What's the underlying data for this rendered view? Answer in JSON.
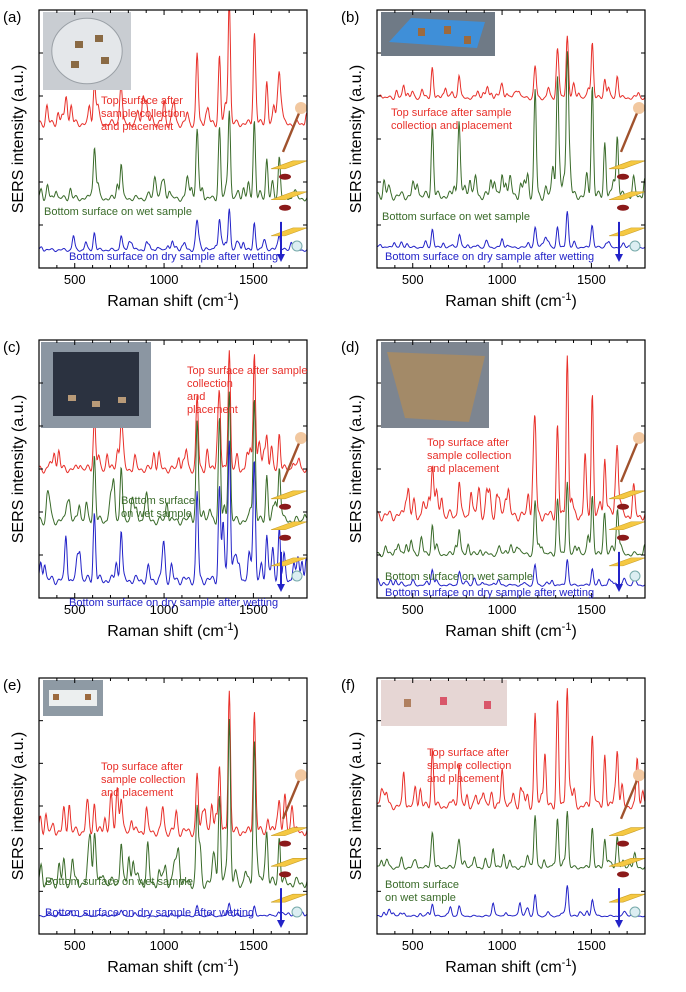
{
  "figure": {
    "y_axis_label": "SERS intensity (a.u.)",
    "x_axis_label_main": "Raman shift (cm",
    "x_axis_label_sup": "-1",
    "x_axis_label_end": ")"
  },
  "colors": {
    "top": "#e8302a",
    "wet": "#3a6b2a",
    "dry": "#2323c8"
  },
  "chart_data": [
    {
      "panel": "(a)",
      "type": "line",
      "xlabel": "Raman shift (cm-1)",
      "ylabel": "SERS intensity (a.u.)",
      "xlim": [
        300,
        1800
      ],
      "xticks": [
        500,
        1000,
        1500
      ],
      "annotations": {
        "top": [
          "Top surface after",
          "sample collection",
          "and placement"
        ],
        "wet": [
          "Bottom surface on wet sample"
        ],
        "dry": [
          "Bottom surface on dry sample after wetting"
        ]
      },
      "series": [
        {
          "name": "Top surface after sample collection and placement",
          "offset": 0.56,
          "amplitude": 0.48,
          "peaks": [
            [
              1185,
              0.62
            ],
            [
              1310,
              0.6
            ],
            [
              1365,
              1.0
            ],
            [
              1505,
              0.72
            ],
            [
              1575,
              0.38
            ],
            [
              1645,
              0.42
            ],
            [
              610,
              0.35
            ],
            [
              760,
              0.32
            ],
            [
              1000,
              0.2
            ],
            [
              450,
              0.14
            ]
          ]
        },
        {
          "name": "Bottom surface on wet sample",
          "offset": 0.27,
          "amplitude": 0.34,
          "peaks": [
            [
              1185,
              0.75
            ],
            [
              1310,
              0.8
            ],
            [
              1365,
              1.0
            ],
            [
              1505,
              0.88
            ],
            [
              1575,
              0.45
            ],
            [
              1645,
              0.48
            ],
            [
              610,
              0.42
            ],
            [
              760,
              0.4
            ],
            [
              1000,
              0.18
            ]
          ]
        },
        {
          "name": "Bottom surface on dry sample after wetting",
          "offset": 0.07,
          "amplitude": 0.16,
          "peaks": [
            [
              1185,
              0.55
            ],
            [
              1310,
              0.6
            ],
            [
              1365,
              0.85
            ],
            [
              1505,
              0.55
            ],
            [
              1645,
              0.3
            ],
            [
              610,
              0.35
            ],
            [
              760,
              0.3
            ]
          ]
        }
      ]
    },
    {
      "panel": "(b)",
      "type": "line",
      "xlabel": "Raman shift (cm-1)",
      "ylabel": "SERS intensity (a.u.)",
      "xlim": [
        300,
        1800
      ],
      "xticks": [
        500,
        1000,
        1500
      ],
      "annotations": {
        "top": [
          "Top surface after sample",
          "collection and placement"
        ],
        "wet": [
          "Bottom surface on wet sample"
        ],
        "dry": [
          "Bottom surface on dry sample after wetting"
        ]
      },
      "series": [
        {
          "name": "Top surface after sample collection and placement",
          "offset": 0.66,
          "amplitude": 0.24,
          "peaks": [
            [
              1185,
              0.5
            ],
            [
              1310,
              0.6
            ],
            [
              1365,
              1.0
            ],
            [
              1505,
              0.88
            ],
            [
              1575,
              0.3
            ],
            [
              1645,
              0.35
            ],
            [
              610,
              0.3
            ],
            [
              760,
              0.25
            ],
            [
              450,
              0.2
            ],
            [
              1000,
              0.18
            ]
          ]
        },
        {
          "name": "Bottom surface on wet sample",
          "offset": 0.28,
          "amplitude": 0.56,
          "peaks": [
            [
              1185,
              0.78
            ],
            [
              1310,
              0.86
            ],
            [
              1365,
              1.0
            ],
            [
              1505,
              0.82
            ],
            [
              1575,
              0.4
            ],
            [
              1645,
              0.45
            ],
            [
              610,
              0.52
            ],
            [
              760,
              0.48
            ],
            [
              1000,
              0.15
            ]
          ]
        },
        {
          "name": "Bottom surface on dry sample after wetting",
          "offset": 0.08,
          "amplitude": 0.14,
          "peaks": [
            [
              1185,
              0.55
            ],
            [
              1310,
              0.6
            ],
            [
              1365,
              0.9
            ],
            [
              1505,
              0.55
            ],
            [
              610,
              0.38
            ],
            [
              760,
              0.3
            ],
            [
              1000,
              0.25
            ]
          ]
        }
      ]
    },
    {
      "panel": "(c)",
      "type": "line",
      "xlabel": "Raman shift (cm-1)",
      "ylabel": "SERS intensity (a.u.)",
      "xlim": [
        300,
        1800
      ],
      "xticks": [
        500,
        1000,
        1500
      ],
      "annotations": {
        "top": [
          "Top surface after sample",
          "collection",
          "and",
          "placement"
        ],
        "wet": [
          "Bottom surface",
          "on wet sample"
        ],
        "dry": [
          "Bottom surface on dry sample after wetting"
        ]
      },
      "series": [
        {
          "name": "Top surface after sample collection and placement",
          "offset": 0.5,
          "amplitude": 0.46,
          "peaks": [
            [
              1185,
              0.6
            ],
            [
              1310,
              0.58
            ],
            [
              1365,
              1.0
            ],
            [
              1505,
              0.9
            ],
            [
              1575,
              0.28
            ],
            [
              1645,
              0.3
            ],
            [
              610,
              0.35
            ],
            [
              760,
              0.28
            ]
          ]
        },
        {
          "name": "Bottom surface on wet sample",
          "offset": 0.3,
          "amplitude": 0.5,
          "peaks": [
            [
              1185,
              0.72
            ],
            [
              1310,
              0.78
            ],
            [
              1365,
              1.0
            ],
            [
              1505,
              0.88
            ],
            [
              1575,
              0.35
            ],
            [
              1645,
              0.4
            ],
            [
              610,
              0.5
            ],
            [
              760,
              0.42
            ]
          ]
        },
        {
          "name": "Bottom surface on dry sample after wetting",
          "offset": 0.07,
          "amplitude": 0.54,
          "peaks": [
            [
              1185,
              0.62
            ],
            [
              1310,
              0.66
            ],
            [
              1365,
              1.0
            ],
            [
              1505,
              0.82
            ],
            [
              1575,
              0.32
            ],
            [
              1645,
              0.38
            ],
            [
              610,
              0.48
            ],
            [
              760,
              0.36
            ],
            [
              450,
              0.2
            ],
            [
              1000,
              0.2
            ]
          ]
        }
      ]
    },
    {
      "panel": "(d)",
      "type": "line",
      "xlabel": "Raman shift (cm-1)",
      "ylabel": "SERS intensity (a.u.)",
      "xlim": [
        300,
        1800
      ],
      "xticks": [
        500,
        1000,
        1500
      ],
      "annotations": {
        "top": [
          "Top surface after",
          "sample collection",
          "and placement"
        ],
        "wet": [
          "Bottom surface on wet sample"
        ],
        "dry": [
          "Bottom surface on dry sample after wetting"
        ]
      },
      "series": [
        {
          "name": "Top surface after sample collection and placement",
          "offset": 0.32,
          "amplitude": 0.62,
          "peaks": [
            [
              1185,
              0.52
            ],
            [
              1310,
              0.55
            ],
            [
              1365,
              1.0
            ],
            [
              1505,
              0.75
            ],
            [
              1575,
              0.35
            ],
            [
              1645,
              0.4
            ],
            [
              610,
              0.28
            ],
            [
              760,
              0.22
            ]
          ]
        },
        {
          "name": "Bottom surface on wet sample",
          "offset": 0.17,
          "amplitude": 0.28,
          "peaks": [
            [
              1185,
              0.72
            ],
            [
              1310,
              0.7
            ],
            [
              1365,
              1.0
            ],
            [
              1505,
              0.8
            ],
            [
              1575,
              0.45
            ],
            [
              1645,
              0.5
            ],
            [
              610,
              0.4
            ],
            [
              760,
              0.35
            ]
          ]
        },
        {
          "name": "Bottom surface on dry sample after wetting",
          "offset": 0.05,
          "amplitude": 0.1,
          "peaks": [
            [
              1185,
              0.5
            ],
            [
              1365,
              0.8
            ],
            [
              1505,
              0.5
            ],
            [
              610,
              0.4
            ],
            [
              760,
              0.3
            ]
          ]
        }
      ]
    },
    {
      "panel": "(e)",
      "type": "line",
      "xlabel": "Raman shift (cm-1)",
      "ylabel": "SERS intensity (a.u.)",
      "xlim": [
        300,
        1800
      ],
      "xticks": [
        500,
        1000,
        1500
      ],
      "annotations": {
        "top": [
          "Top surface after",
          "sample collection",
          "and placement"
        ],
        "wet": [
          "Bottom surface on wet sample"
        ],
        "dry": [
          "Bottom surface on dry sample after wetting"
        ]
      },
      "series": [
        {
          "name": "Top surface after sample collection and placement",
          "offset": 0.4,
          "amplitude": 0.55,
          "peaks": [
            [
              1185,
              0.4
            ],
            [
              1310,
              0.45
            ],
            [
              1365,
              1.0
            ],
            [
              1505,
              0.8
            ],
            [
              1645,
              0.22
            ],
            [
              610,
              0.2
            ],
            [
              760,
              0.24
            ]
          ]
        },
        {
          "name": "Bottom surface on wet sample",
          "offset": 0.2,
          "amplitude": 0.64,
          "peaks": [
            [
              1185,
              0.45
            ],
            [
              1310,
              0.52
            ],
            [
              1365,
              1.0
            ],
            [
              1505,
              0.85
            ],
            [
              1575,
              0.3
            ],
            [
              1645,
              0.28
            ],
            [
              610,
              0.25
            ],
            [
              760,
              0.25
            ]
          ]
        },
        {
          "name": "Bottom surface on dry sample after wetting",
          "offset": 0.07,
          "amplitude": 0.05,
          "peaks": [
            [
              1365,
              0.6
            ],
            [
              1505,
              0.5
            ],
            [
              1185,
              0.4
            ],
            [
              760,
              0.3
            ]
          ]
        }
      ]
    },
    {
      "panel": "(f)",
      "type": "line",
      "xlabel": "Raman shift (cm-1)",
      "ylabel": "SERS intensity (a.u.)",
      "xlim": [
        300,
        1800
      ],
      "xticks": [
        500,
        1000,
        1500
      ],
      "annotations": {
        "top": [
          "Top surface after",
          "sample collection",
          "and placement"
        ],
        "wet": [
          "Bottom surface",
          "on wet sample"
        ],
        "dry": []
      },
      "series": [
        {
          "name": "Top surface after sample collection and placement",
          "offset": 0.5,
          "amplitude": 0.46,
          "peaks": [
            [
              1185,
              0.8
            ],
            [
              1240,
              0.45
            ],
            [
              1310,
              0.92
            ],
            [
              1365,
              1.0
            ],
            [
              1505,
              0.62
            ],
            [
              1575,
              0.45
            ],
            [
              1645,
              0.48
            ],
            [
              610,
              0.5
            ],
            [
              760,
              0.38
            ],
            [
              450,
              0.3
            ],
            [
              1000,
              0.25
            ]
          ]
        },
        {
          "name": "Bottom surface on wet sample",
          "offset": 0.26,
          "amplitude": 0.22,
          "peaks": [
            [
              1185,
              0.9
            ],
            [
              1310,
              0.85
            ],
            [
              1365,
              1.0
            ],
            [
              1505,
              0.7
            ],
            [
              1575,
              0.5
            ],
            [
              1645,
              0.55
            ],
            [
              610,
              0.5
            ],
            [
              760,
              0.45
            ],
            [
              950,
              0.3
            ]
          ]
        },
        {
          "name": "Bottom surface on dry sample after wetting",
          "offset": 0.07,
          "amplitude": 0.12,
          "peaks": [
            [
              1185,
              0.8
            ],
            [
              1365,
              1.0
            ],
            [
              1505,
              0.6
            ],
            [
              610,
              0.45
            ],
            [
              760,
              0.4
            ],
            [
              950,
              0.5
            ],
            [
              1100,
              0.5
            ]
          ]
        }
      ]
    }
  ]
}
